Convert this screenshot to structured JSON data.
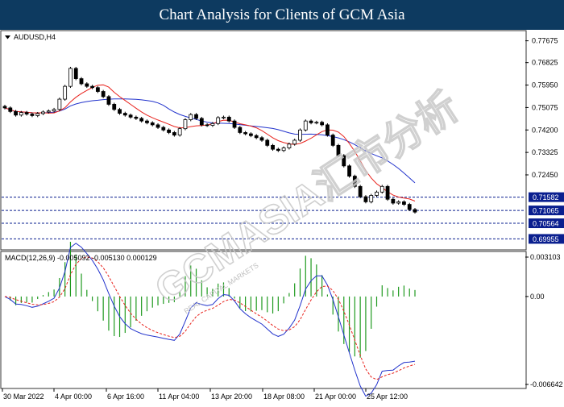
{
  "header": {
    "title": "Chart Analysis for Clients of GCM Asia"
  },
  "chart_data": [
    {
      "type": "candlestick",
      "symbol_label": "AUDUSD,H4",
      "ylim": [
        0.6956,
        0.7804
      ],
      "y_ticks": [
        "0.77675",
        "0.76825",
        "0.75950",
        "0.75075",
        "0.74200",
        "0.73325",
        "0.72450",
        "0.71582",
        "0.71065",
        "0.70564",
        "0.69955"
      ],
      "x_ticks": [
        "30 Mar 2022",
        "4 Apr 00:00",
        "6 Apr 16:00",
        "11 Apr 04:00",
        "13 Apr 20:00",
        "18 Apr 08:00",
        "21 Apr 00:00",
        "25 Apr 12:00"
      ],
      "levels": [
        {
          "value": 0.71582,
          "label": "0.71582",
          "style": "dashed"
        },
        {
          "value": 0.71065,
          "label": "0.71065",
          "style": "dashed"
        },
        {
          "value": 0.70564,
          "label": "0.70564",
          "style": "dashed"
        },
        {
          "value": 0.69955,
          "label": "0.69955",
          "style": "dashed"
        }
      ],
      "level_badge_color": "#0a1f8f",
      "current_price": "0.71065",
      "up_color": "#ffffff",
      "down_color": "#000000",
      "ma_fast_color": "#e8221c",
      "ma_slow_color": "#2233cc",
      "closes": [
        0.7506,
        0.7492,
        0.7478,
        0.7488,
        0.7482,
        0.7476,
        0.7484,
        0.749,
        0.7494,
        0.75,
        0.754,
        0.759,
        0.766,
        0.762,
        0.76,
        0.759,
        0.7585,
        0.757,
        0.755,
        0.752,
        0.75,
        0.7485,
        0.7478,
        0.747,
        0.7465,
        0.7455,
        0.7448,
        0.744,
        0.743,
        0.742,
        0.741,
        0.74,
        0.7425,
        0.746,
        0.748,
        0.7465,
        0.744,
        0.7438,
        0.7445,
        0.7468,
        0.747,
        0.7455,
        0.743,
        0.741,
        0.7405,
        0.7398,
        0.739,
        0.738,
        0.736,
        0.7345,
        0.734,
        0.735,
        0.7365,
        0.738,
        0.742,
        0.7455,
        0.7448,
        0.745,
        0.744,
        0.74,
        0.736,
        0.732,
        0.728,
        0.724,
        0.72,
        0.716,
        0.714,
        0.7165,
        0.7178,
        0.72,
        0.715,
        0.7135,
        0.714,
        0.713,
        0.711,
        0.71
      ]
    },
    {
      "type": "line",
      "indicator_label": "MACD(12,26,9) -0.005092 -0.005130 0.000129",
      "ylim": [
        -0.0068,
        0.0033
      ],
      "y_ticks": [
        "0.003103",
        "0.00",
        "-0.006642"
      ],
      "histogram_color": "#1f9a1f",
      "signal_color": "#e8221c",
      "main_line_color": "#2233cc"
    }
  ],
  "watermark": {
    "text": "GCMASIA汇市分析",
    "subtext": "REAL CAPITAL MARKETS"
  }
}
